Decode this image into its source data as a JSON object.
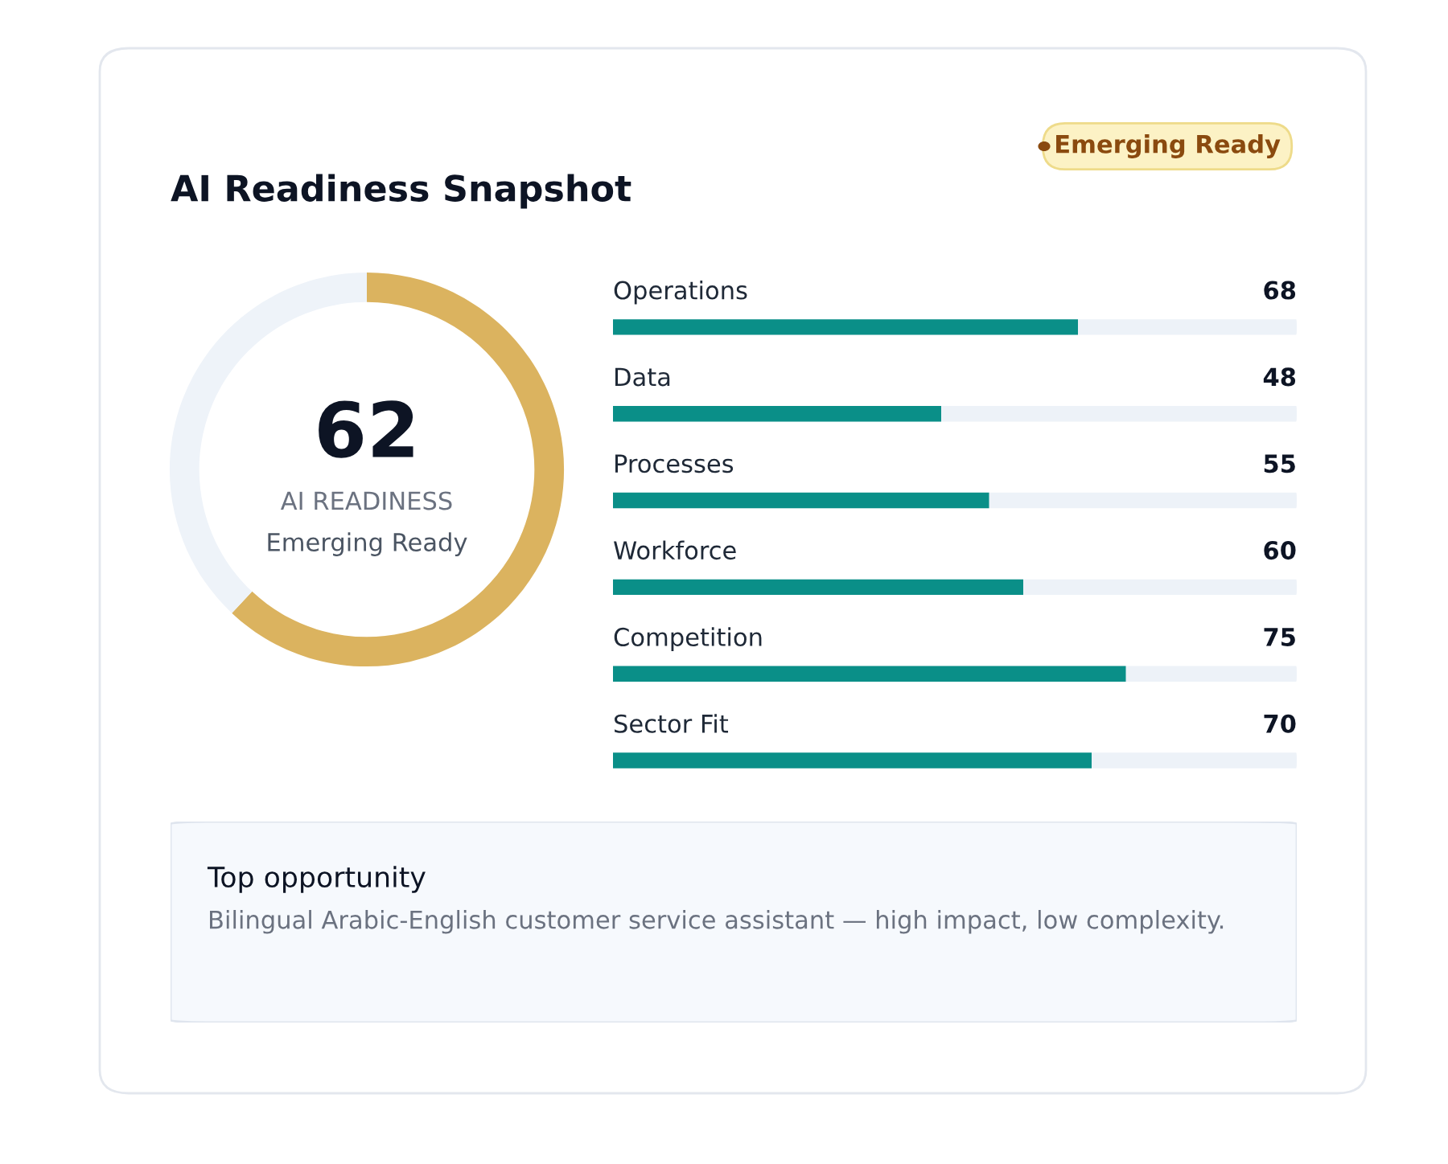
{
  "chart_data": [
    {
      "type": "donut",
      "title": "AI Readiness Snapshot",
      "categories": [
        null,
        null
      ],
      "values": [
        62,
        38
      ],
      "colors": [
        "#dbb35f",
        "#eef3f9"
      ],
      "annotations": [
        "62",
        "AI READINESS",
        "Emerging Ready"
      ]
    },
    {
      "type": "bar",
      "orientation": "horizontal",
      "categories": [
        "Operations",
        "Data",
        "Processes",
        "Workforce",
        "Competition",
        "Sector Fit"
      ],
      "values": [
        68,
        48,
        55,
        60,
        75,
        70
      ],
      "color": "#0a8f88",
      "xlim": [
        0,
        100
      ],
      "tick_labels": false,
      "data_labels": true,
      "annotations": [
        "Emerging Ready"
      ]
    },
    {
      "type": "other",
      "title": "Top opportunity",
      "annotations": [
        "Bilingual Arabic-English customer service assistant — high impact, low complexity."
      ]
    }
  ]
}
